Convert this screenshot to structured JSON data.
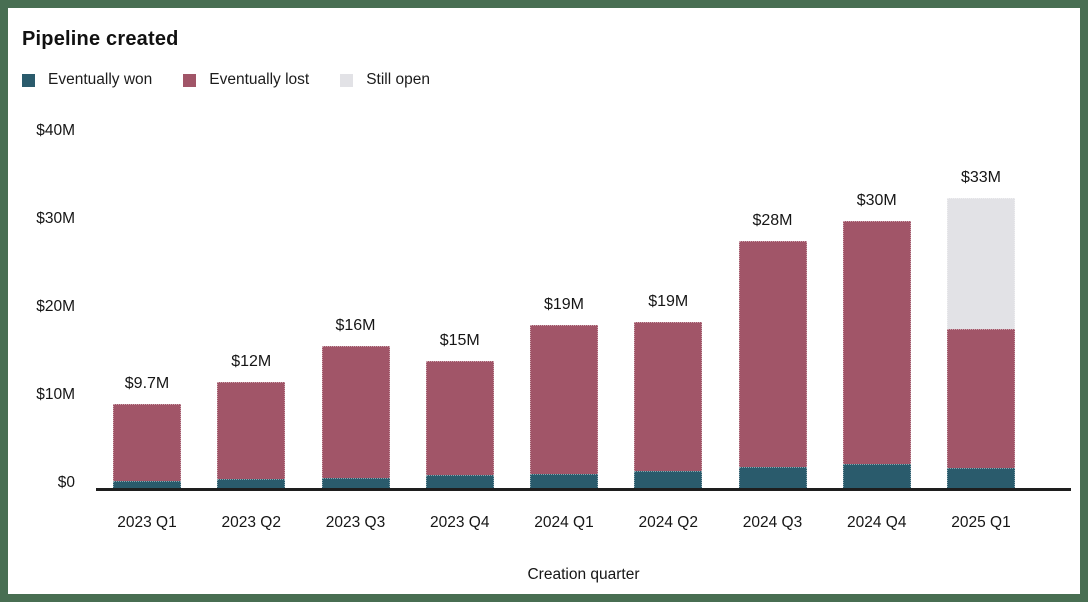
{
  "frame": {
    "border_color": "#486e52",
    "card_background": "#ffffff"
  },
  "header": {
    "title": "Pipeline created"
  },
  "legend": [
    {
      "label": "Eventually won",
      "color": "#2a5b6c"
    },
    {
      "label": "Eventually lost",
      "color": "#a15568"
    },
    {
      "label": "Still open",
      "color": "#e2e2e6"
    }
  ],
  "chart_data": {
    "type": "bar",
    "stacked": true,
    "title": "Pipeline created",
    "xlabel": "Creation quarter",
    "ylabel": "",
    "unit": "$M",
    "ylim": [
      0,
      40
    ],
    "y_ticks": [
      {
        "value": 0,
        "label": "$0"
      },
      {
        "value": 10,
        "label": "$10M"
      },
      {
        "value": 20,
        "label": "$20M"
      },
      {
        "value": 30,
        "label": "$30M"
      },
      {
        "value": 40,
        "label": "$40M"
      }
    ],
    "grid": false,
    "legend_position": "top-left",
    "categories": [
      "2023 Q1",
      "2023 Q2",
      "2023 Q3",
      "2023 Q4",
      "2024 Q1",
      "2024 Q2",
      "2024 Q3",
      "2024 Q4",
      "2025 Q1"
    ],
    "series": [
      {
        "name": "Eventually won",
        "color": "#2a5b6c",
        "values": [
          0.95,
          1.1,
          1.3,
          1.6,
          1.7,
          2.0,
          2.5,
          2.8,
          2.4
        ]
      },
      {
        "name": "Eventually lost",
        "color": "#a15568",
        "values": [
          8.75,
          11.1,
          14.9,
          12.9,
          16.9,
          17.0,
          25.7,
          27.7,
          15.8
        ]
      },
      {
        "name": "Still open",
        "color": "#e2e2e6",
        "values": [
          0,
          0,
          0,
          0,
          0,
          0,
          0,
          0,
          14.9
        ]
      }
    ],
    "totals": [
      9.7,
      12.2,
      16.2,
      14.5,
      18.6,
      19.0,
      28.2,
      30.5,
      33.1
    ],
    "total_labels": [
      "$9.7M",
      "$12M",
      "$16M",
      "$15M",
      "$19M",
      "$19M",
      "$28M",
      "$30M",
      "$33M"
    ]
  }
}
